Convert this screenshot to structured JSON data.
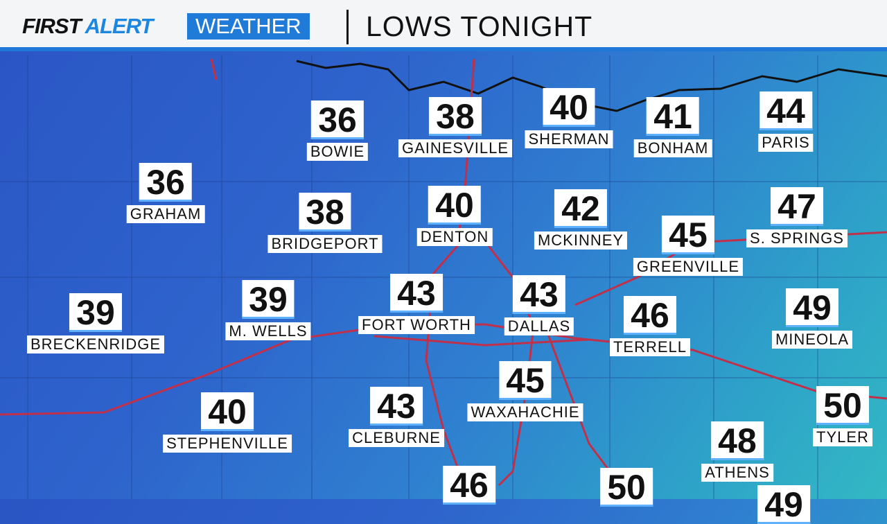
{
  "header": {
    "brand_first": "FIRST",
    "brand_alert": "ALERT",
    "brand_weather": "WEATHER",
    "title": "LOWS TONIGHT"
  },
  "colors": {
    "header_blue": "#1f77d6",
    "road": "#c0304a",
    "map_blue": "#2a55c4",
    "map_teal": "#33b8c4"
  },
  "cities": [
    {
      "name": "BOWIE",
      "low": "36"
    },
    {
      "name": "GAINESVILLE",
      "low": "38"
    },
    {
      "name": "SHERMAN",
      "low": "40"
    },
    {
      "name": "BONHAM",
      "low": "41"
    },
    {
      "name": "PARIS",
      "low": "44"
    },
    {
      "name": "GRAHAM",
      "low": "36"
    },
    {
      "name": "BRIDGEPORT",
      "low": "38"
    },
    {
      "name": "DENTON",
      "low": "40"
    },
    {
      "name": "MCKINNEY",
      "low": "42"
    },
    {
      "name": "GREENVILLE",
      "low": "45"
    },
    {
      "name": "S. SPRINGS",
      "low": "47"
    },
    {
      "name": "BRECKENRIDGE",
      "low": "39"
    },
    {
      "name": "M. WELLS",
      "low": "39"
    },
    {
      "name": "FORT WORTH",
      "low": "43"
    },
    {
      "name": "DALLAS",
      "low": "43"
    },
    {
      "name": "TERRELL",
      "low": "46"
    },
    {
      "name": "MINEOLA",
      "low": "49"
    },
    {
      "name": "STEPHENVILLE",
      "low": "40"
    },
    {
      "name": "CLEBURNE",
      "low": "43"
    },
    {
      "name": "WAXAHACHIE",
      "low": "45"
    },
    {
      "name": "TYLER",
      "low": "50"
    },
    {
      "name": "ATHENS",
      "low": "48"
    }
  ],
  "partial": [
    {
      "low": "46"
    },
    {
      "low": "50"
    },
    {
      "low": "49"
    }
  ]
}
